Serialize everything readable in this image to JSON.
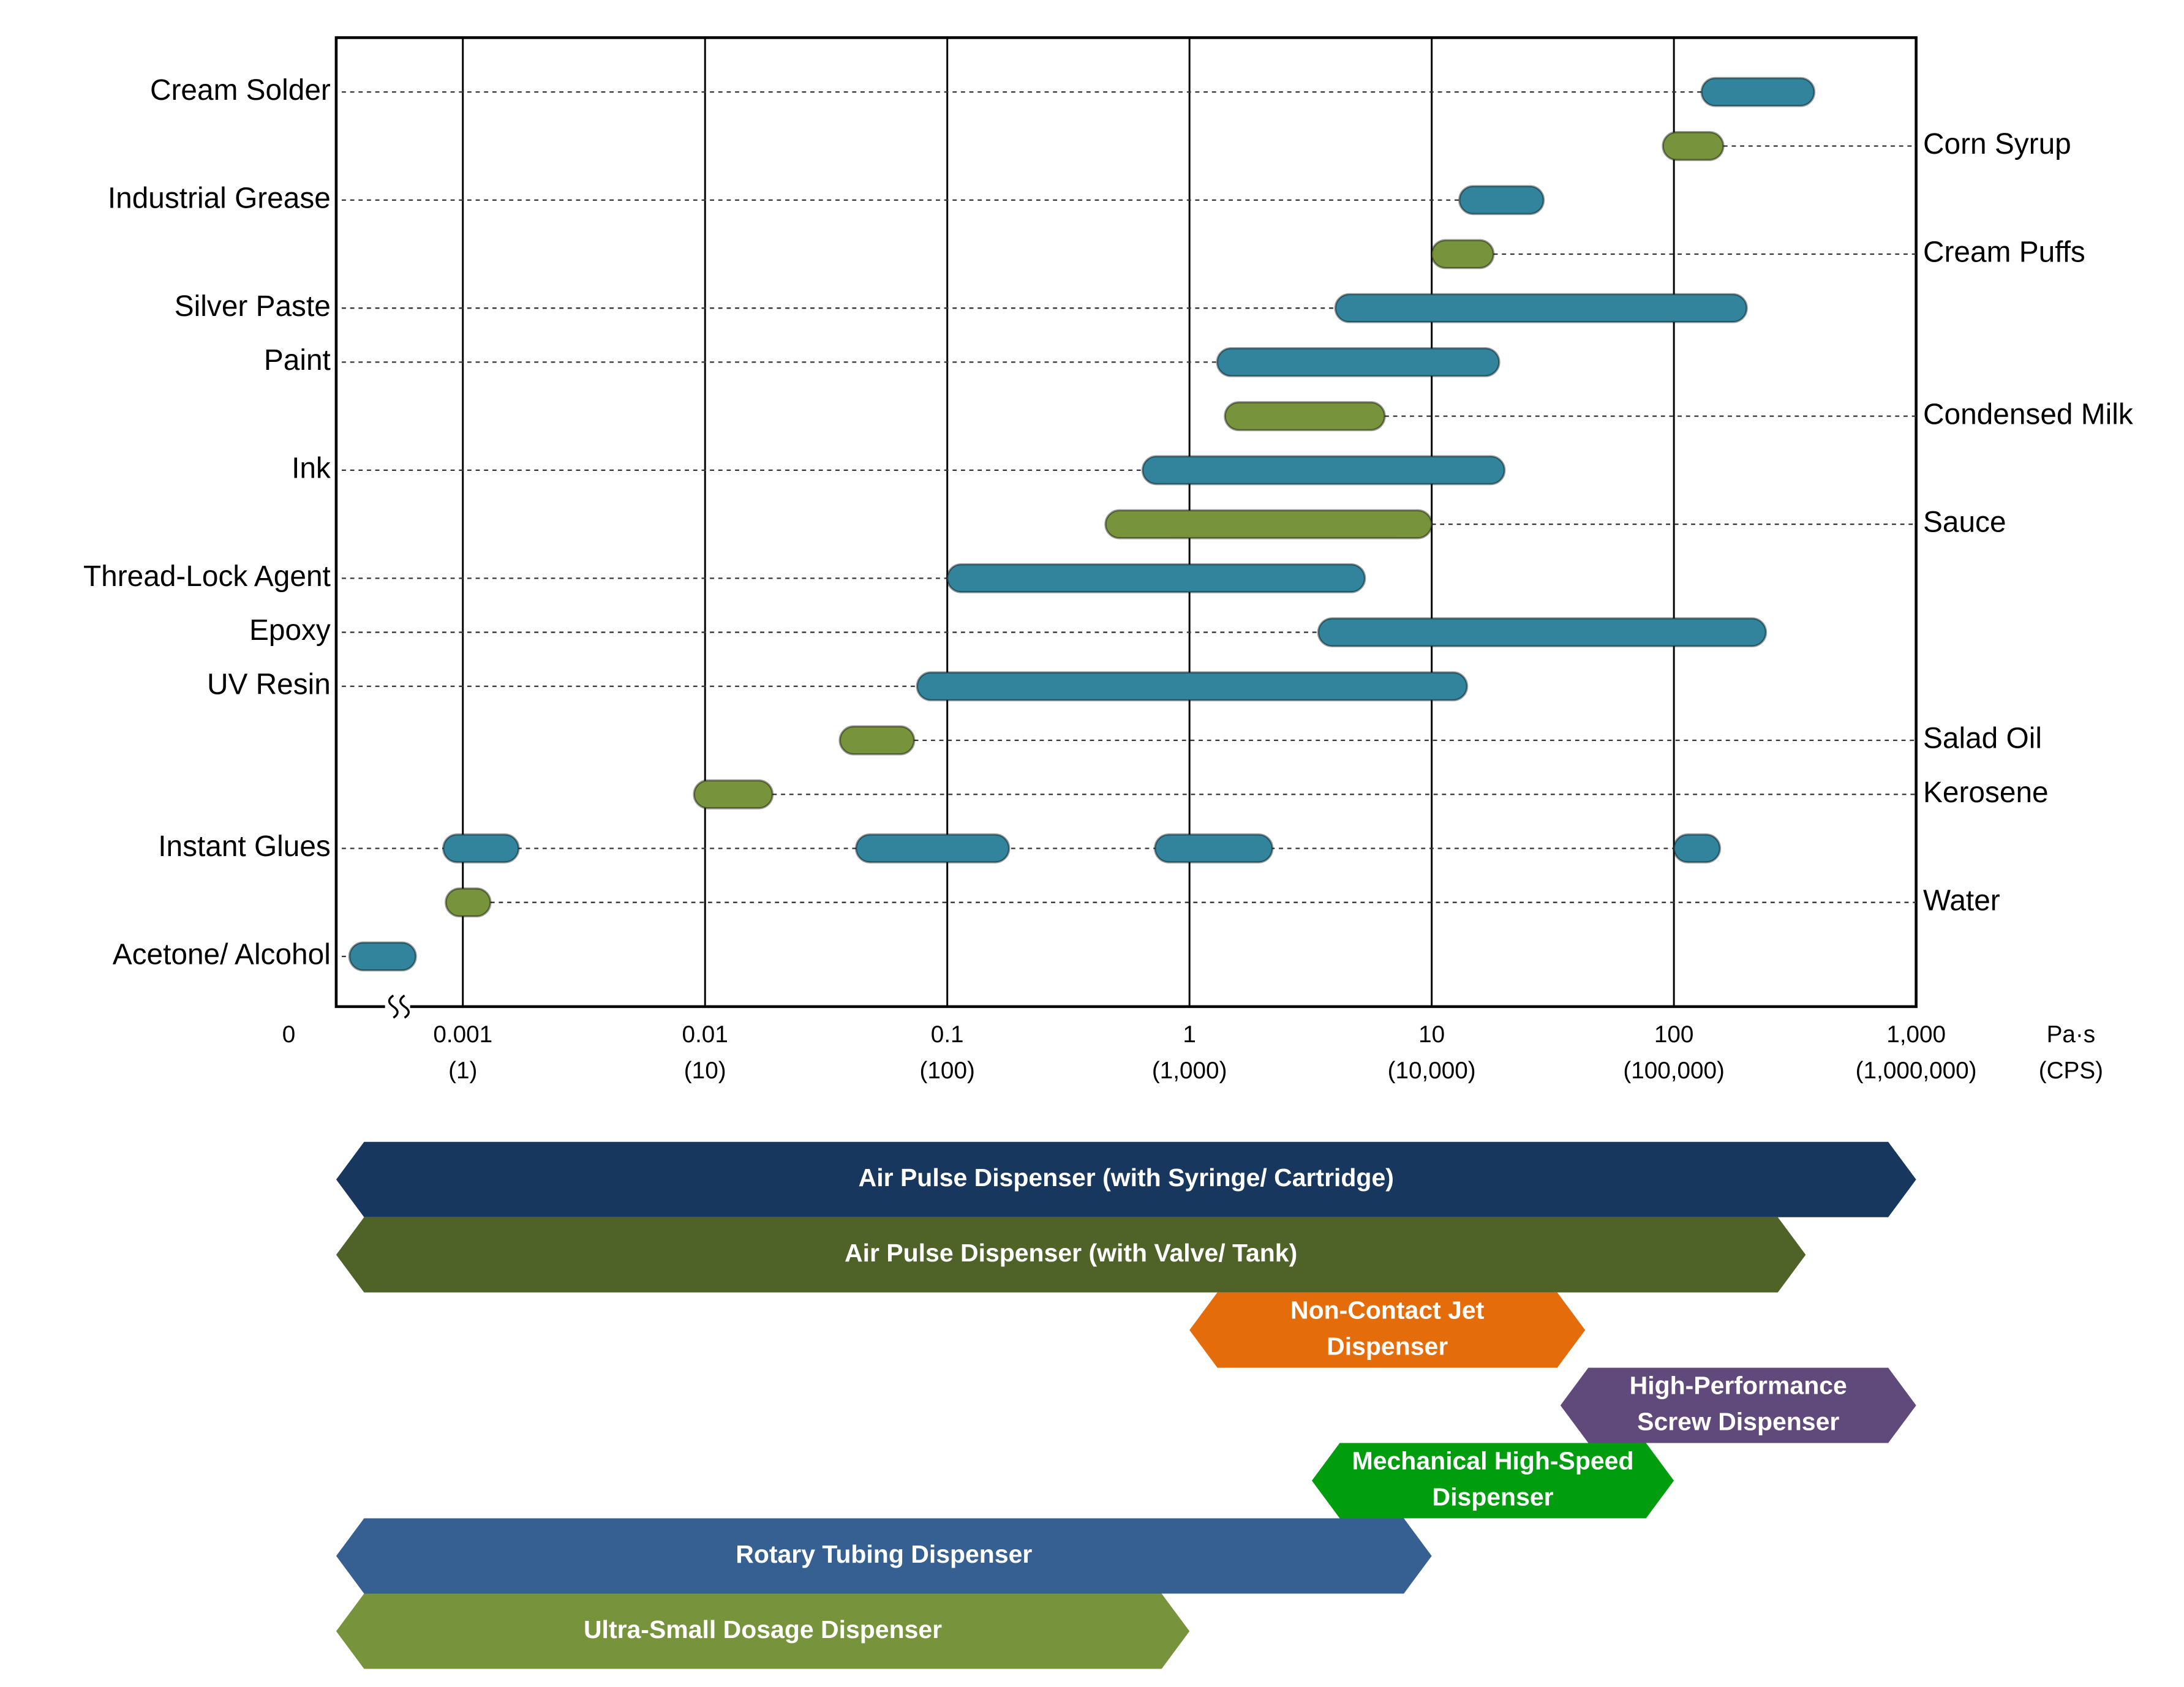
{
  "chart_data": {
    "type": "range_bar",
    "xscale": "log",
    "xlim": [
      0.0003,
      1000
    ],
    "xticks": [
      0.001,
      0.01,
      0.1,
      1,
      10,
      100,
      {
        "value": 1000,
        "label": "1,000"
      }
    ],
    "xtick_sublabels": [
      "(1)",
      "(10)",
      "(100)",
      "(1,000)",
      "(10,000)",
      "(100,000)",
      "(1,000,000)"
    ],
    "x_break_label": "0",
    "x_unit": "Pa·s",
    "x_unit_secondary": "(CPS)",
    "grid": true,
    "rows": [
      {
        "label": "Cream Solder",
        "side": "left",
        "color": "#31849b",
        "ranges": [
          [
            130,
            380
          ]
        ]
      },
      {
        "label": "Corn Syrup",
        "side": "right",
        "color": "#77933c",
        "ranges": [
          [
            90,
            160
          ]
        ]
      },
      {
        "label": "Industrial Grease",
        "side": "left",
        "color": "#31849b",
        "ranges": [
          [
            13,
            29
          ]
        ]
      },
      {
        "label": "Cream Puffs",
        "side": "right",
        "color": "#77933c",
        "ranges": [
          [
            10,
            18
          ]
        ]
      },
      {
        "label": "Silver Paste",
        "side": "left",
        "color": "#31849b",
        "ranges": [
          [
            4,
            200
          ]
        ]
      },
      {
        "label": "Paint",
        "side": "left",
        "color": "#31849b",
        "ranges": [
          [
            1.3,
            19
          ]
        ]
      },
      {
        "label": "Condensed Milk",
        "side": "right",
        "color": "#77933c",
        "ranges": [
          [
            1.4,
            6.4
          ]
        ]
      },
      {
        "label": "Ink",
        "side": "left",
        "color": "#31849b",
        "ranges": [
          [
            0.64,
            20
          ]
        ]
      },
      {
        "label": "Sauce",
        "side": "right",
        "color": "#77933c",
        "ranges": [
          [
            0.45,
            10
          ]
        ]
      },
      {
        "label": "Thread-Lock Agent",
        "side": "left",
        "color": "#31849b",
        "ranges": [
          [
            0.1,
            5.3
          ]
        ]
      },
      {
        "label": "Epoxy",
        "side": "left",
        "color": "#31849b",
        "ranges": [
          [
            3.4,
            240
          ]
        ]
      },
      {
        "label": "UV Resin",
        "side": "left",
        "color": "#31849b",
        "ranges": [
          [
            0.075,
            14
          ]
        ]
      },
      {
        "label": "Salad Oil",
        "side": "right",
        "color": "#77933c",
        "ranges": [
          [
            0.036,
            0.073
          ]
        ]
      },
      {
        "label": "Kerosene",
        "side": "right",
        "color": "#77933c",
        "ranges": [
          [
            0.009,
            0.019
          ]
        ]
      },
      {
        "label": "Instant Glues",
        "side": "left",
        "color": "#31849b",
        "ranges": [
          [
            0.00083,
            0.0017
          ],
          [
            0.042,
            0.18
          ],
          [
            0.72,
            2.2
          ],
          [
            100,
            155
          ]
        ]
      },
      {
        "label": "Water",
        "side": "right",
        "color": "#77933c",
        "ranges": [
          [
            0.00085,
            0.0013
          ]
        ]
      },
      {
        "label": "Acetone/ Alcohol",
        "side": "left",
        "color": "#31849b",
        "ranges": [
          [
            0.00034,
            0.00064
          ]
        ]
      }
    ],
    "dispensers": [
      {
        "lines": [
          "Air Pulse Dispenser (with Syringe/ Cartridge)"
        ],
        "color": "#17375e",
        "range": [
          0.0003,
          1000
        ]
      },
      {
        "lines": [
          "Air Pulse Dispenser (with Valve/ Tank)"
        ],
        "color": "#4f6228",
        "range": [
          0.0003,
          350
        ]
      },
      {
        "lines": [
          "Non-Contact Jet",
          "Dispenser"
        ],
        "color": "#e46c0a",
        "range": [
          1,
          43
        ]
      },
      {
        "lines": [
          "High-Performance",
          "Screw Dispenser"
        ],
        "color": "#604a7b",
        "range": [
          34,
          1000
        ]
      },
      {
        "lines": [
          "Mechanical High-Speed",
          "Dispenser"
        ],
        "color": "#009e0f",
        "range": [
          3.2,
          100
        ]
      },
      {
        "lines": [
          "Rotary Tubing Dispenser"
        ],
        "color": "#366092",
        "range": [
          0.0003,
          10
        ]
      },
      {
        "lines": [
          "Ultra-Small Dosage Dispenser"
        ],
        "color": "#77933c",
        "range": [
          0.0003,
          1
        ]
      }
    ]
  }
}
